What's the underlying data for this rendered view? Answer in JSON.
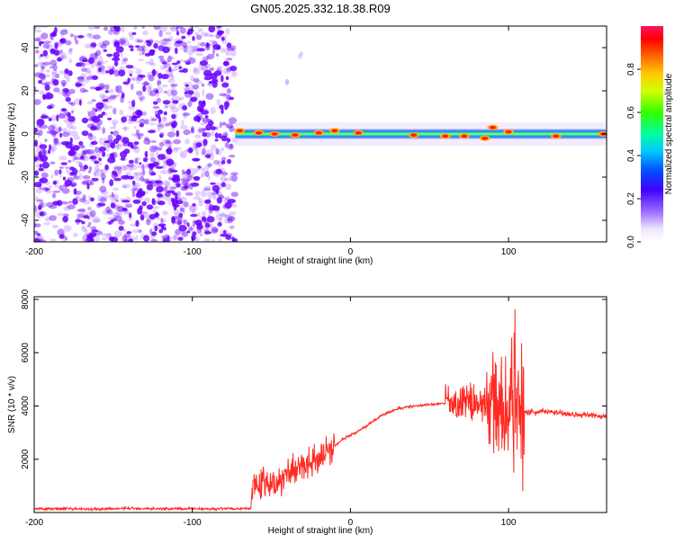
{
  "figure": {
    "title": "GN05.2025.332.18.38.R09"
  },
  "colors": {
    "spec_noise": "#6a00ff",
    "snr_line": "#ff2a22",
    "axes": "#000000"
  },
  "chart_data": [
    {
      "type": "heatmap",
      "name": "spectrogram",
      "title": "GN05.2025.332.18.38.R09",
      "xlabel": "Height of straight line (km)",
      "ylabel": "Frequency (Hz)",
      "xlim": [
        -200,
        162
      ],
      "ylim": [
        -50,
        50
      ],
      "xticks": [
        -200,
        -100,
        0,
        100
      ],
      "yticks": [
        -40,
        -20,
        0,
        20,
        40
      ],
      "noise_region_x": [
        -200,
        -73
      ],
      "signal_band": {
        "start_x": -73,
        "end_x": 162,
        "center_freq": 0,
        "features": [
          {
            "x": -70,
            "f": 1.5
          },
          {
            "x": -58,
            "f": 0.5
          },
          {
            "x": -48,
            "f": 0
          },
          {
            "x": -35,
            "f": -0.5
          },
          {
            "x": -20,
            "f": 0.5
          },
          {
            "x": -10,
            "f": 1.5
          },
          {
            "x": 5,
            "f": 0.5
          },
          {
            "x": 40,
            "f": -0.5
          },
          {
            "x": 60,
            "f": -1
          },
          {
            "x": 72,
            "f": -1
          },
          {
            "x": 85,
            "f": -2
          },
          {
            "x": 90,
            "f": 3
          },
          {
            "x": 100,
            "f": 1
          },
          {
            "x": 130,
            "f": -1
          },
          {
            "x": 160,
            "f": 0
          }
        ],
        "trace_points": [
          {
            "x": -40,
            "f": 24
          },
          {
            "x": -32,
            "f": 36
          },
          {
            "x": -31,
            "f": 37
          }
        ]
      },
      "colorbar": {
        "label": "Normalized spectral amplitude",
        "range": [
          0.0,
          1.0
        ],
        "ticks": [
          0.0,
          0.2,
          0.4,
          0.6,
          0.8
        ]
      }
    },
    {
      "type": "line",
      "name": "snr",
      "xlabel": "Height of straight line (km)",
      "ylabel": "SNR (10 * v/v)",
      "xlim": [
        -200,
        162
      ],
      "ylim": [
        0,
        8100
      ],
      "xticks": [
        -200,
        -100,
        0,
        100
      ],
      "yticks": [
        2000,
        4000,
        6000,
        8000
      ],
      "series": [
        {
          "name": "SNR",
          "x": [
            -200,
            -180,
            -160,
            -140,
            -120,
            -100,
            -90,
            -80,
            -70,
            -63,
            -62,
            -58,
            -55,
            -50,
            -45,
            -40,
            -35,
            -30,
            -25,
            -20,
            -15,
            -10,
            -5,
            0,
            5,
            10,
            20,
            30,
            40,
            50,
            60,
            70,
            75,
            80,
            85,
            90,
            95,
            100,
            103,
            106,
            108,
            110,
            115,
            120,
            130,
            140,
            150,
            162
          ],
          "values": [
            130,
            150,
            120,
            160,
            140,
            150,
            130,
            150,
            140,
            140,
            1100,
            1000,
            1300,
            950,
            1200,
            1400,
            1700,
            1500,
            1900,
            2100,
            2300,
            2500,
            2750,
            2900,
            3050,
            3250,
            3650,
            3900,
            4000,
            4050,
            4100,
            4050,
            4150,
            4100,
            4050,
            4100,
            4000,
            4050,
            3950,
            4100,
            3850,
            3800,
            3750,
            3800,
            3750,
            3700,
            3650,
            3600
          ],
          "oscillation": [
            {
              "from": -62,
              "to": -10,
              "amplitude": 700
            },
            {
              "from": 60,
              "to": 85,
              "amplitude": 900
            },
            {
              "from": 85,
              "to": 100,
              "amplitude": 2200
            },
            {
              "from": 100,
              "to": 110,
              "amplitude": 3800
            },
            {
              "from": 110,
              "to": 162,
              "amplitude": 150
            }
          ]
        }
      ]
    }
  ]
}
